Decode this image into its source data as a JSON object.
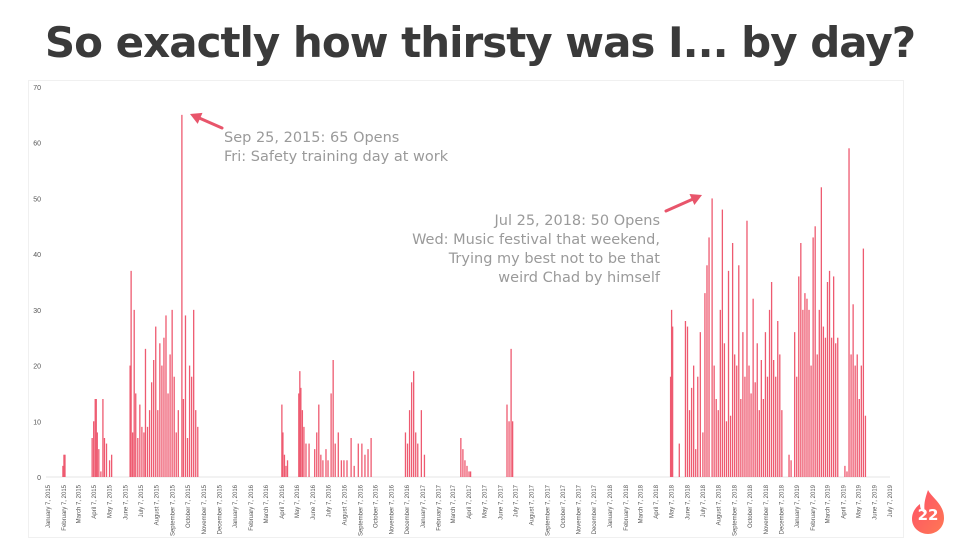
{
  "slide": {
    "title": "So exactly how thirsty was I... by day?",
    "page_number": "22"
  },
  "colors": {
    "bar": "#ee5a70",
    "arrow": "#e8556b",
    "annotation_text": "#9a9a9a",
    "title": "#3a3a3a",
    "badge_gradient": [
      "#fd5068",
      "#ff7854"
    ]
  },
  "annotations": [
    {
      "lines": [
        "Sep 25, 2015: 65 Opens",
        "Fri: Safety training day at work"
      ]
    },
    {
      "lines": [
        "Jul 25, 2018: 50 Opens",
        "Wed: Music festival that weekend,",
        "Trying my best not to be that",
        "weird Chad by himself"
      ]
    }
  ],
  "chart_data": {
    "type": "bar",
    "title": "So exactly how thirsty was I... by day?",
    "xlabel": "",
    "ylabel": "",
    "ylim": [
      0,
      70
    ],
    "yticks": [
      0,
      10,
      20,
      30,
      40,
      50,
      60,
      70
    ],
    "grid": false,
    "legend": "none",
    "x_start": "January 7, 2015",
    "x_end": "July 7, 2019",
    "x_ticks": [
      "January 7, 2015",
      "February 7, 2015",
      "March 7, 2015",
      "April 7, 2015",
      "May 7, 2015",
      "June 7, 2015",
      "July 7, 2015",
      "August 7, 2015",
      "September 7, 2015",
      "October 7, 2015",
      "November 7, 2015",
      "December 7, 2015",
      "January 7, 2016",
      "February 7, 2016",
      "March 7, 2016",
      "April 7, 2016",
      "May 7, 2016",
      "June 7, 2016",
      "July 7, 2016",
      "August 7, 2016",
      "September 7, 2016",
      "October 7, 2016",
      "November 7, 2016",
      "December 7, 2016",
      "January 7, 2017",
      "February 7, 2017",
      "March 7, 2017",
      "April 7, 2017",
      "May 7, 2017",
      "June 7, 2017",
      "July 7, 2017",
      "August 7, 2017",
      "September 7, 2017",
      "October 7, 2017",
      "November 7, 2017",
      "December 7, 2017",
      "January 7, 2018",
      "February 7, 2018",
      "March 7, 2018",
      "April 7, 2018",
      "May 7, 2018",
      "June 7, 2018",
      "July 7, 2018",
      "August 7, 2018",
      "September 7, 2018",
      "October 7, 2018",
      "November 7, 2018",
      "December 7, 2018",
      "January 7, 2019",
      "February 7, 2019",
      "March 7, 2019",
      "April 7, 2019",
      "May 7, 2019",
      "June 7, 2019",
      "July 7, 2019"
    ],
    "series": [
      {
        "values": [
          [
            "2015-02-05",
            2
          ],
          [
            "2015-02-07",
            4
          ],
          [
            "2015-02-09",
            4
          ],
          [
            "2015-04-03",
            7
          ],
          [
            "2015-04-06",
            10
          ],
          [
            "2015-04-09",
            14
          ],
          [
            "2015-04-11",
            14
          ],
          [
            "2015-04-13",
            8
          ],
          [
            "2015-04-16",
            5
          ],
          [
            "2015-04-20",
            1
          ],
          [
            "2015-04-24",
            14
          ],
          [
            "2015-04-27",
            7
          ],
          [
            "2015-05-01",
            6
          ],
          [
            "2015-05-07",
            3
          ],
          [
            "2015-05-11",
            4
          ],
          [
            "2015-06-16",
            20
          ],
          [
            "2015-06-18",
            37
          ],
          [
            "2015-06-21",
            8
          ],
          [
            "2015-06-24",
            30
          ],
          [
            "2015-06-27",
            15
          ],
          [
            "2015-07-01",
            7
          ],
          [
            "2015-07-05",
            13
          ],
          [
            "2015-07-09",
            9
          ],
          [
            "2015-07-13",
            8
          ],
          [
            "2015-07-16",
            23
          ],
          [
            "2015-07-20",
            9
          ],
          [
            "2015-07-24",
            12
          ],
          [
            "2015-07-28",
            17
          ],
          [
            "2015-08-01",
            21
          ],
          [
            "2015-08-05",
            27
          ],
          [
            "2015-08-09",
            12
          ],
          [
            "2015-08-13",
            24
          ],
          [
            "2015-08-17",
            20
          ],
          [
            "2015-08-21",
            25
          ],
          [
            "2015-08-25",
            29
          ],
          [
            "2015-08-29",
            15
          ],
          [
            "2015-09-02",
            22
          ],
          [
            "2015-09-06",
            30
          ],
          [
            "2015-09-10",
            18
          ],
          [
            "2015-09-14",
            8
          ],
          [
            "2015-09-18",
            12
          ],
          [
            "2015-09-25",
            65
          ],
          [
            "2015-09-28",
            14
          ],
          [
            "2015-10-02",
            29
          ],
          [
            "2015-10-06",
            7
          ],
          [
            "2015-10-10",
            20
          ],
          [
            "2015-10-14",
            18
          ],
          [
            "2015-10-18",
            30
          ],
          [
            "2015-10-22",
            12
          ],
          [
            "2015-10-26",
            9
          ],
          [
            "2016-04-07",
            13
          ],
          [
            "2016-04-09",
            8
          ],
          [
            "2016-04-12",
            4
          ],
          [
            "2016-04-15",
            2
          ],
          [
            "2016-04-18",
            3
          ],
          [
            "2016-05-10",
            15
          ],
          [
            "2016-05-12",
            19
          ],
          [
            "2016-05-14",
            16
          ],
          [
            "2016-05-17",
            12
          ],
          [
            "2016-05-20",
            9
          ],
          [
            "2016-05-24",
            6
          ],
          [
            "2016-05-30",
            6
          ],
          [
            "2016-06-10",
            5
          ],
          [
            "2016-06-14",
            8
          ],
          [
            "2016-06-18",
            13
          ],
          [
            "2016-06-22",
            4
          ],
          [
            "2016-06-26",
            3
          ],
          [
            "2016-07-02",
            5
          ],
          [
            "2016-07-06",
            3
          ],
          [
            "2016-07-12",
            15
          ],
          [
            "2016-07-16",
            21
          ],
          [
            "2016-07-20",
            6
          ],
          [
            "2016-07-26",
            8
          ],
          [
            "2016-08-01",
            3
          ],
          [
            "2016-08-06",
            3
          ],
          [
            "2016-08-12",
            3
          ],
          [
            "2016-08-20",
            7
          ],
          [
            "2016-08-26",
            2
          ],
          [
            "2016-09-03",
            6
          ],
          [
            "2016-09-10",
            6
          ],
          [
            "2016-09-16",
            4
          ],
          [
            "2016-09-22",
            5
          ],
          [
            "2016-09-28",
            7
          ],
          [
            "2016-12-04",
            8
          ],
          [
            "2016-12-08",
            6
          ],
          [
            "2016-12-12",
            12
          ],
          [
            "2016-12-16",
            17
          ],
          [
            "2016-12-20",
            19
          ],
          [
            "2016-12-24",
            8
          ],
          [
            "2016-12-28",
            6
          ],
          [
            "2017-01-04",
            12
          ],
          [
            "2017-01-10",
            4
          ],
          [
            "2017-03-22",
            7
          ],
          [
            "2017-03-26",
            5
          ],
          [
            "2017-03-30",
            3
          ],
          [
            "2017-04-03",
            2
          ],
          [
            "2017-04-07",
            1
          ],
          [
            "2017-04-10",
            1
          ],
          [
            "2017-06-20",
            13
          ],
          [
            "2017-06-24",
            10
          ],
          [
            "2017-06-28",
            23
          ],
          [
            "2017-07-01",
            10
          ],
          [
            "2018-05-05",
            18
          ],
          [
            "2018-05-07",
            30
          ],
          [
            "2018-05-09",
            27
          ],
          [
            "2018-05-22",
            6
          ],
          [
            "2018-06-03",
            28
          ],
          [
            "2018-06-07",
            27
          ],
          [
            "2018-06-11",
            12
          ],
          [
            "2018-06-15",
            16
          ],
          [
            "2018-06-19",
            20
          ],
          [
            "2018-06-23",
            5
          ],
          [
            "2018-06-27",
            18
          ],
          [
            "2018-07-02",
            26
          ],
          [
            "2018-07-07",
            8
          ],
          [
            "2018-07-11",
            33
          ],
          [
            "2018-07-15",
            38
          ],
          [
            "2018-07-19",
            43
          ],
          [
            "2018-07-25",
            50
          ],
          [
            "2018-07-29",
            20
          ],
          [
            "2018-08-02",
            14
          ],
          [
            "2018-08-06",
            12
          ],
          [
            "2018-08-10",
            30
          ],
          [
            "2018-08-14",
            48
          ],
          [
            "2018-08-18",
            24
          ],
          [
            "2018-08-22",
            10
          ],
          [
            "2018-08-26",
            37
          ],
          [
            "2018-08-30",
            11
          ],
          [
            "2018-09-03",
            42
          ],
          [
            "2018-09-07",
            22
          ],
          [
            "2018-09-11",
            20
          ],
          [
            "2018-09-15",
            38
          ],
          [
            "2018-09-19",
            14
          ],
          [
            "2018-09-23",
            26
          ],
          [
            "2018-09-27",
            18
          ],
          [
            "2018-10-01",
            46
          ],
          [
            "2018-10-05",
            20
          ],
          [
            "2018-10-09",
            15
          ],
          [
            "2018-10-13",
            32
          ],
          [
            "2018-10-17",
            17
          ],
          [
            "2018-10-21",
            24
          ],
          [
            "2018-10-25",
            12
          ],
          [
            "2018-10-29",
            21
          ],
          [
            "2018-11-02",
            14
          ],
          [
            "2018-11-06",
            26
          ],
          [
            "2018-11-10",
            18
          ],
          [
            "2018-11-14",
            30
          ],
          [
            "2018-11-18",
            35
          ],
          [
            "2018-11-22",
            21
          ],
          [
            "2018-11-26",
            18
          ],
          [
            "2018-11-30",
            28
          ],
          [
            "2018-12-04",
            22
          ],
          [
            "2018-12-08",
            12
          ],
          [
            "2018-12-22",
            4
          ],
          [
            "2018-12-26",
            3
          ],
          [
            "2019-01-02",
            26
          ],
          [
            "2019-01-06",
            18
          ],
          [
            "2019-01-10",
            36
          ],
          [
            "2019-01-14",
            42
          ],
          [
            "2019-01-18",
            30
          ],
          [
            "2019-01-22",
            33
          ],
          [
            "2019-01-26",
            32
          ],
          [
            "2019-01-30",
            30
          ],
          [
            "2019-02-03",
            20
          ],
          [
            "2019-02-07",
            43
          ],
          [
            "2019-02-11",
            45
          ],
          [
            "2019-02-15",
            22
          ],
          [
            "2019-02-19",
            30
          ],
          [
            "2019-02-23",
            52
          ],
          [
            "2019-02-27",
            27
          ],
          [
            "2019-03-03",
            25
          ],
          [
            "2019-03-07",
            35
          ],
          [
            "2019-03-11",
            37
          ],
          [
            "2019-03-15",
            25
          ],
          [
            "2019-03-19",
            36
          ],
          [
            "2019-03-23",
            24
          ],
          [
            "2019-03-27",
            25
          ],
          [
            "2019-04-10",
            2
          ],
          [
            "2019-04-14",
            1
          ],
          [
            "2019-04-18",
            59
          ],
          [
            "2019-04-22",
            22
          ],
          [
            "2019-04-26",
            31
          ],
          [
            "2019-04-30",
            20
          ],
          [
            "2019-05-04",
            22
          ],
          [
            "2019-05-08",
            14
          ],
          [
            "2019-05-12",
            20
          ],
          [
            "2019-05-16",
            41
          ],
          [
            "2019-05-20",
            11
          ]
        ]
      }
    ]
  }
}
